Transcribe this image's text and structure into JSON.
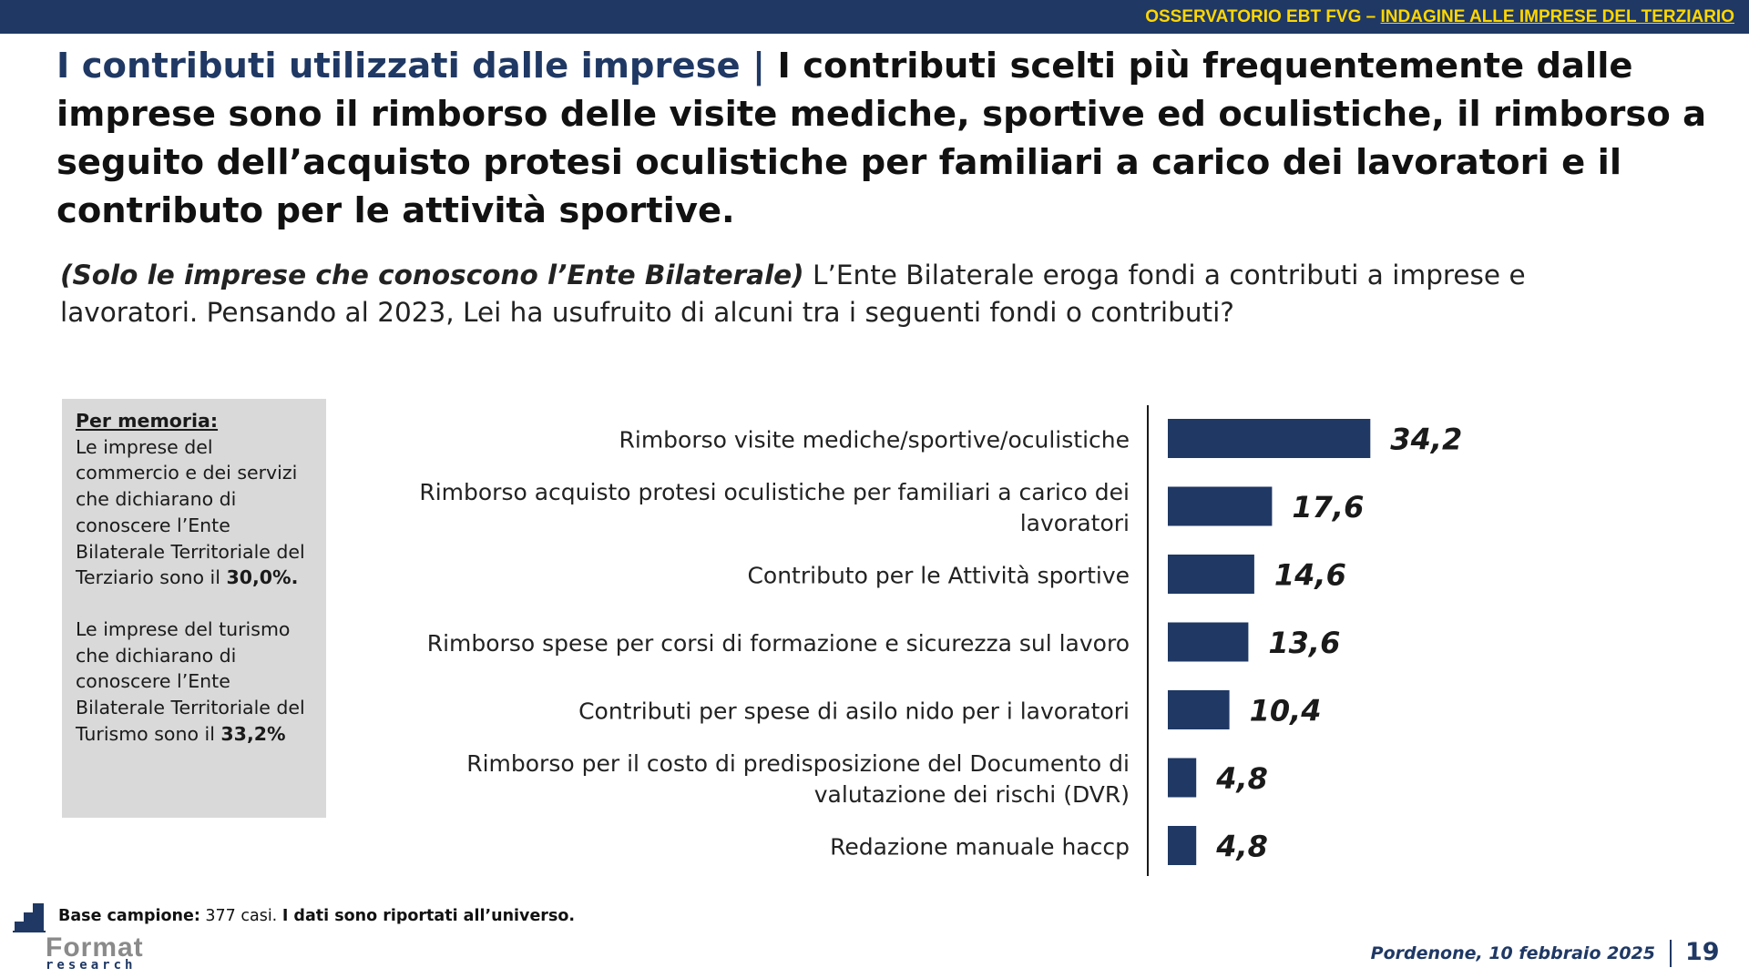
{
  "header": {
    "observatory": "OSSERVATORIO EBT FVG – ",
    "survey": "INDAGINE ALLE IMPRESE DEL TERZIARIO"
  },
  "title": {
    "highlight": "I contributi utilizzati dalle imprese",
    "separator": " | ",
    "text": "I contributi scelti più frequentemente dalle imprese sono il rimborso delle visite mediche, sportive ed oculistiche, il rimborso a seguito dell’acquisto protesi oculistiche per familiari a carico dei lavoratori e il contributo per le attività sportive."
  },
  "question": {
    "qualifier": "(Solo le imprese che conoscono l’Ente Bilaterale)",
    "text": " L’Ente Bilaterale eroga fondi a contributi a imprese e lavoratori. Pensando al 2023, Lei ha usufruito di alcuni tra i seguenti fondi o contributi?"
  },
  "memo": {
    "heading": "Per memoria:",
    "p1_text": "Le imprese del commercio e dei servizi che dichiarano di conoscere l’Ente Bilaterale Territoriale del Terziario sono il ",
    "p1_value": "30,0%.",
    "p2_text": "Le imprese del turismo che dichiarano di conoscere l’Ente Bilaterale Territoriale del Turismo sono il ",
    "p2_value": "33,2%"
  },
  "chart_data": {
    "type": "bar",
    "orientation": "horizontal",
    "categories": [
      [
        "Rimborso visite mediche/sportive/oculistiche"
      ],
      [
        "Rimborso acquisto protesi oculistiche per familiari a carico dei",
        "lavoratori"
      ],
      [
        "Contributo per le Attività sportive"
      ],
      [
        "Rimborso spese per corsi di formazione e sicurezza sul lavoro"
      ],
      [
        "Contributi per spese di asilo nido per i lavoratori"
      ],
      [
        "Rimborso per il costo di predisposizione del Documento di",
        "valutazione dei rischi (DVR)"
      ],
      [
        "Redazione manuale haccp"
      ]
    ],
    "values": [
      34.2,
      17.6,
      14.6,
      13.6,
      10.4,
      4.8,
      4.8
    ],
    "value_labels": [
      "34,2",
      "17,6",
      "14,6",
      "13,6",
      "10,4",
      "4,8",
      "4,8"
    ],
    "bar_color": "#1f3864",
    "title": "",
    "xlabel": "",
    "ylabel": "",
    "grid": false
  },
  "footer": {
    "base_label": "Base campione:",
    "base_value": " 377 casi. ",
    "base_note": "I dati sono riportati all’universo.",
    "logo_name": "Format",
    "logo_sub": "research",
    "date": "Pordenone, 10 febbraio 2025",
    "page": "19"
  },
  "colors": {
    "navy": "#1f3864",
    "accent_yellow": "#ffd700",
    "memo_bg": "#d9d9d9"
  }
}
